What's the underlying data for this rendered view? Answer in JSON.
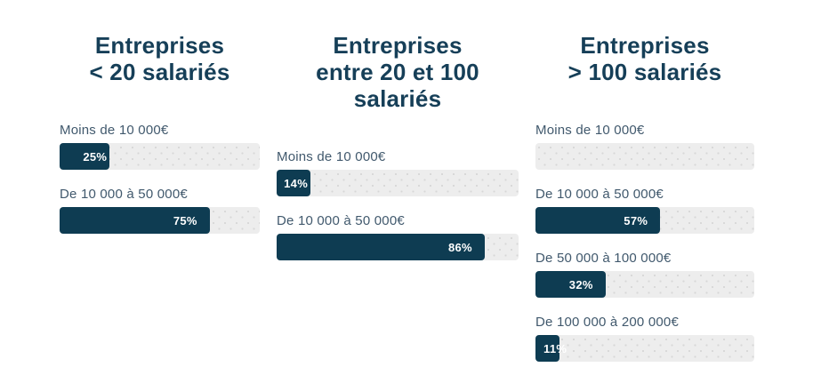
{
  "colors": {
    "bar_fill": "#0e3c52",
    "bar_track": "#ededed",
    "title_color": "#163f58",
    "label_color": "#41596d",
    "value_label_color": "#ffffff"
  },
  "chart_data": [
    {
      "type": "bar",
      "orientation": "horizontal",
      "title": "Entreprises\n< 20 salariés",
      "xlim": [
        0,
        100
      ],
      "grid": false,
      "bars": [
        {
          "label": "Moins de 10 000€",
          "value": 25,
          "value_label": "25%"
        },
        {
          "label": "De 10 000 à 50 000€",
          "value": 75,
          "value_label": "75%"
        }
      ]
    },
    {
      "type": "bar",
      "orientation": "horizontal",
      "title": "Entreprises\nentre 20 et 100\nsalariés",
      "xlim": [
        0,
        100
      ],
      "grid": false,
      "bars": [
        {
          "label": "Moins de 10 000€",
          "value": 14,
          "value_label": "14%"
        },
        {
          "label": "De 10 000 à 50 000€",
          "value": 86,
          "value_label": "86%"
        }
      ]
    },
    {
      "type": "bar",
      "orientation": "horizontal",
      "title": "Entreprises\n> 100 salariés",
      "xlim": [
        0,
        100
      ],
      "grid": false,
      "bars": [
        {
          "label": "Moins de 10 000€",
          "value": 0,
          "value_label": ""
        },
        {
          "label": "De 10 000 à 50 000€",
          "value": 57,
          "value_label": "57%"
        },
        {
          "label": "De 50 000 à 100 000€",
          "value": 32,
          "value_label": "32%"
        },
        {
          "label": "De 100 000 à 200 000€",
          "value": 11,
          "value_label": "11%"
        }
      ]
    }
  ]
}
